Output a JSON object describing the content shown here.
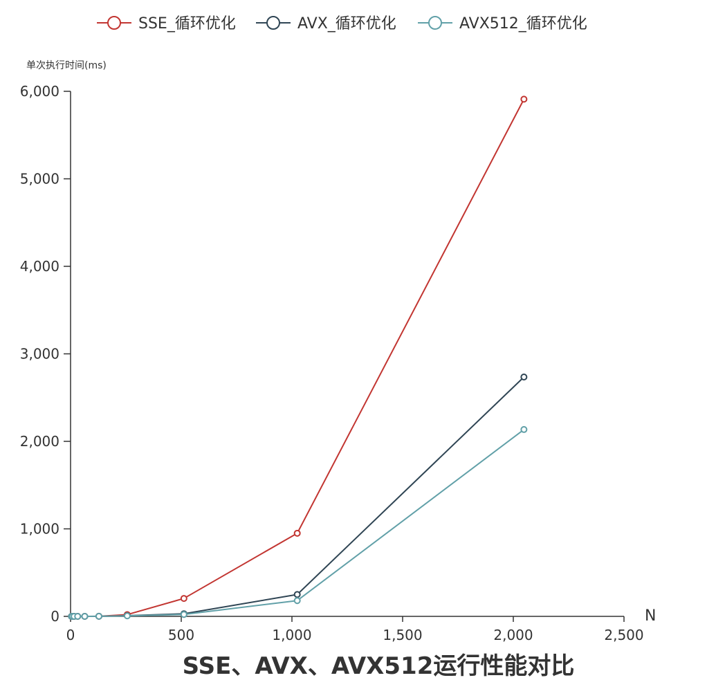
{
  "chart_data": {
    "type": "line",
    "title": "SSE、AVX、AVX512运行性能对比",
    "xlabel": "N",
    "ylabel": "单次执行时间(ms)",
    "xlim": [
      0,
      2500
    ],
    "ylim": [
      0,
      6000
    ],
    "x_ticks": [
      "0",
      "500",
      "1,000",
      "1,500",
      "2,000",
      "2,500"
    ],
    "y_ticks": [
      "0",
      "1,000",
      "2,000",
      "3,000",
      "4,000",
      "5,000",
      "6,000"
    ],
    "x_tick_values": [
      0,
      500,
      1000,
      1500,
      2000,
      2500
    ],
    "y_tick_values": [
      0,
      1000,
      2000,
      3000,
      4000,
      5000,
      6000
    ],
    "legend_position": "top-center",
    "grid": false,
    "x": [
      4,
      8,
      16,
      32,
      64,
      128,
      256,
      512,
      1024,
      2048
    ],
    "series": [
      {
        "name": "SSE_循环优化",
        "color": "#c23531",
        "values": [
          0,
          0,
          0,
          0,
          0,
          1,
          20,
          205,
          950,
          5910
        ]
      },
      {
        "name": "AVX_循环优化",
        "color": "#2f4554",
        "values": [
          0,
          0,
          0,
          0,
          0,
          1,
          8,
          30,
          250,
          2735
        ]
      },
      {
        "name": "AVX512_循环优化",
        "color": "#61a0a8",
        "values": [
          0,
          0,
          0,
          0,
          0,
          1,
          6,
          22,
          180,
          2135
        ]
      }
    ]
  }
}
